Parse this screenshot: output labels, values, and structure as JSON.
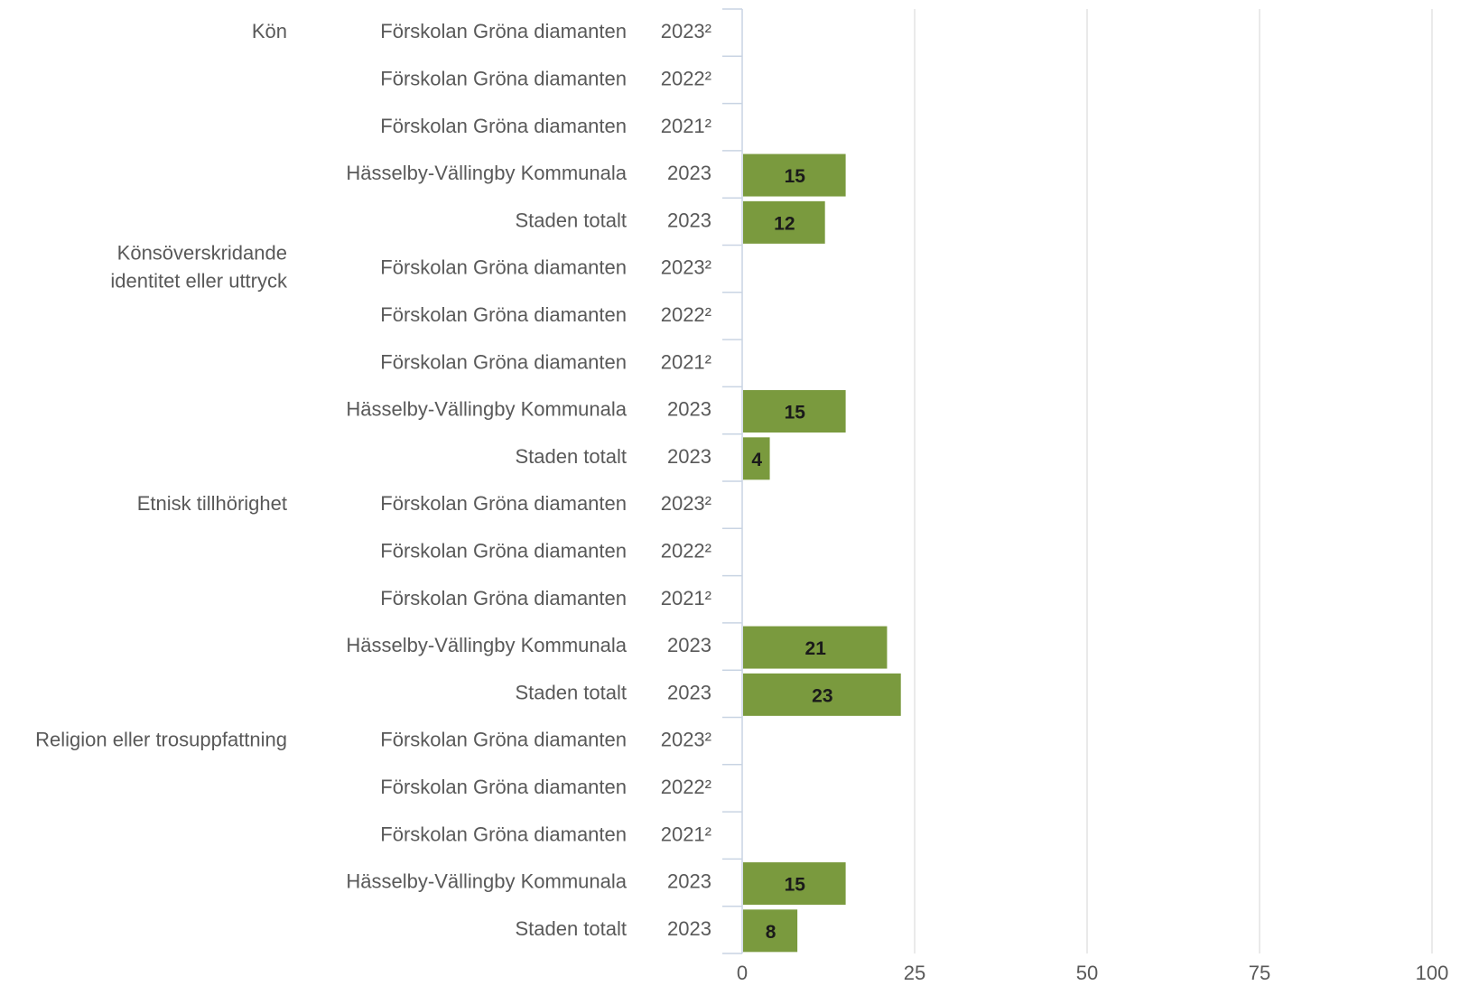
{
  "chart_data": {
    "type": "bar",
    "orientation": "horizontal",
    "xlim": [
      0,
      100
    ],
    "x_ticks": [
      "0",
      "25",
      "50",
      "75",
      "100"
    ],
    "grid": true,
    "bar_color": "#7a9a3e",
    "groups": [
      {
        "category": "Kön",
        "rows": [
          {
            "label": "Förskolan Gröna diamanten",
            "year": "2023²",
            "value": null
          },
          {
            "label": "Förskolan Gröna diamanten",
            "year": "2022²",
            "value": null
          },
          {
            "label": "Förskolan Gröna diamanten",
            "year": "2021²",
            "value": null
          },
          {
            "label": "Hässelby-Vällingby Kommunala",
            "year": "2023",
            "value": 15
          },
          {
            "label": "Staden totalt",
            "year": "2023",
            "value": 12
          }
        ]
      },
      {
        "category": "Könsöverskridande identitet eller uttryck",
        "category_lines": [
          "Könsöverskridande",
          "identitet eller uttryck"
        ],
        "rows": [
          {
            "label": "Förskolan Gröna diamanten",
            "year": "2023²",
            "value": null
          },
          {
            "label": "Förskolan Gröna diamanten",
            "year": "2022²",
            "value": null
          },
          {
            "label": "Förskolan Gröna diamanten",
            "year": "2021²",
            "value": null
          },
          {
            "label": "Hässelby-Vällingby Kommunala",
            "year": "2023",
            "value": 15
          },
          {
            "label": "Staden totalt",
            "year": "2023",
            "value": 4
          }
        ]
      },
      {
        "category": "Etnisk tillhörighet",
        "rows": [
          {
            "label": "Förskolan Gröna diamanten",
            "year": "2023²",
            "value": null
          },
          {
            "label": "Förskolan Gröna diamanten",
            "year": "2022²",
            "value": null
          },
          {
            "label": "Förskolan Gröna diamanten",
            "year": "2021²",
            "value": null
          },
          {
            "label": "Hässelby-Vällingby Kommunala",
            "year": "2023",
            "value": 21
          },
          {
            "label": "Staden totalt",
            "year": "2023",
            "value": 23
          }
        ]
      },
      {
        "category": "Religion eller trosuppfattning",
        "rows": [
          {
            "label": "Förskolan Gröna diamanten",
            "year": "2023²",
            "value": null
          },
          {
            "label": "Förskolan Gröna diamanten",
            "year": "2022²",
            "value": null
          },
          {
            "label": "Förskolan Gröna diamanten",
            "year": "2021²",
            "value": null
          },
          {
            "label": "Hässelby-Vällingby Kommunala",
            "year": "2023",
            "value": 15
          },
          {
            "label": "Staden totalt",
            "year": "2023",
            "value": 8
          }
        ]
      }
    ]
  }
}
